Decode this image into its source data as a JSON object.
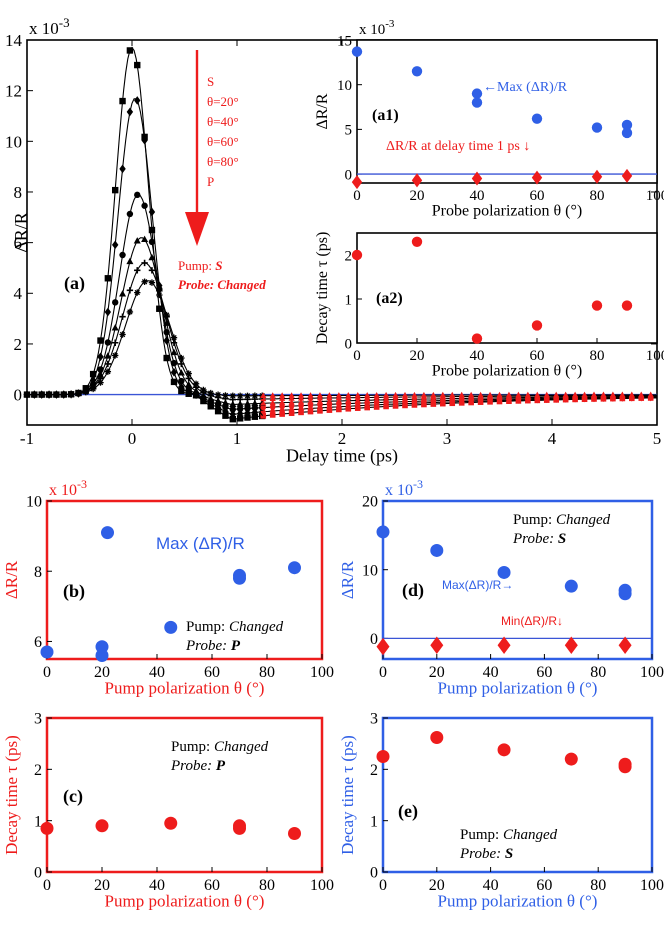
{
  "colors": {
    "red": "#ee1c1c",
    "blue": "#2f5fe6",
    "black": "#000000",
    "hline": "#3a55d6"
  },
  "chart_data": [
    {
      "id": "a",
      "type": "line",
      "panel_label": "(a)",
      "title": "",
      "xlabel": "Delay time (ps)",
      "ylabel": "ΔR/R",
      "exponent_label": "x 10",
      "exponent": "-3",
      "xlim": [
        -1,
        5
      ],
      "ylim": [
        -1.2,
        14
      ],
      "xticks": [
        -1,
        0,
        1,
        2,
        3,
        4,
        5
      ],
      "yticks": [
        0,
        2,
        4,
        6,
        8,
        10,
        12,
        14
      ],
      "axis_color": "#000000",
      "legend_items": [
        "S",
        "θ=20°",
        "θ=40°",
        "θ=60°",
        "θ=80°",
        "P"
      ],
      "arrow_note": "sweep S → P",
      "annotation_pump": "Pump: ",
      "annotation_pump_value": "S",
      "annotation_probe": "Probe: Changed",
      "series": [
        {
          "name": "S",
          "marker": "square",
          "peak": 13.7,
          "center": 0.0,
          "width": 0.22,
          "tail_amp": -1.0,
          "tail_tau": 2.0
        },
        {
          "name": "θ=20°",
          "marker": "diamond",
          "peak": 11.7,
          "center": 0.03,
          "width": 0.23,
          "tail_amp": -0.8,
          "tail_tau": 2.1
        },
        {
          "name": "θ=40°",
          "marker": "circle",
          "peak": 7.9,
          "center": 0.06,
          "width": 0.25,
          "tail_amp": -0.6,
          "tail_tau": 2.2
        },
        {
          "name": "θ=60°",
          "marker": "triangle",
          "peak": 6.2,
          "center": 0.09,
          "width": 0.27,
          "tail_amp": -0.4,
          "tail_tau": 2.3
        },
        {
          "name": "θ=80°",
          "marker": "plus",
          "peak": 5.2,
          "center": 0.12,
          "width": 0.29,
          "tail_amp": -0.2,
          "tail_tau": 2.4
        },
        {
          "name": "P",
          "marker": "star",
          "peak": 4.5,
          "center": 0.15,
          "width": 0.3,
          "tail_amp": -0.05,
          "tail_tau": 2.5
        }
      ]
    },
    {
      "id": "a1",
      "type": "scatter",
      "panel_label": "(a1)",
      "xlabel": "Probe polarization θ (°)",
      "ylabel": "ΔR/R",
      "exponent_label": "x 10",
      "exponent": "-3",
      "xlim": [
        0,
        100
      ],
      "ylim": [
        -1,
        15
      ],
      "xticks": [
        0,
        20,
        40,
        60,
        80,
        100
      ],
      "yticks": [
        0,
        5,
        10,
        15
      ],
      "axis_color": "#000000",
      "zero_line": true,
      "annotation_max": "←Max (ΔR)/R",
      "annotation_min": "ΔR/R at delay time 1 ps ↓",
      "series": [
        {
          "name": "Max (ΔR)/R",
          "marker": "circle",
          "color": "blue",
          "x": [
            0,
            20,
            40,
            40,
            60,
            80,
            90,
            90
          ],
          "y": [
            13.7,
            11.5,
            9.0,
            8.0,
            6.2,
            5.2,
            5.5,
            4.6
          ]
        },
        {
          "name": "ΔR/R at delay time 1 ps",
          "marker": "diamond",
          "color": "red",
          "x": [
            0,
            20,
            40,
            60,
            80,
            90
          ],
          "y": [
            -0.9,
            -0.7,
            -0.5,
            -0.4,
            -0.3,
            -0.2
          ]
        }
      ]
    },
    {
      "id": "a2",
      "type": "scatter",
      "panel_label": "(a2)",
      "xlabel": "Probe polarization θ (°)",
      "ylabel": "Decay time τ (ps)",
      "xlim": [
        0,
        100
      ],
      "ylim": [
        0,
        2.5
      ],
      "xticks": [
        0,
        20,
        40,
        60,
        80,
        100
      ],
      "yticks": [
        0,
        1,
        2
      ],
      "axis_color": "#000000",
      "series": [
        {
          "name": "Decay time",
          "marker": "circle",
          "color": "red",
          "x": [
            0,
            20,
            40,
            60,
            80,
            90
          ],
          "y": [
            2.0,
            2.3,
            0.1,
            0.4,
            0.85,
            0.85
          ]
        }
      ]
    },
    {
      "id": "b",
      "type": "scatter",
      "panel_label": "(b)",
      "xlabel": "Pump polarization θ (°)",
      "ylabel": "ΔR/R",
      "exponent_label": "x 10",
      "exponent": "-3",
      "xlim": [
        0,
        100
      ],
      "ylim": [
        5.5,
        10
      ],
      "xticks": [
        0,
        20,
        40,
        60,
        80,
        100
      ],
      "yticks": [
        6,
        8,
        10
      ],
      "axis_color": "#ee1c1c",
      "annotation_max": "Max (ΔR)/R",
      "annotation_pump": "Pump: ",
      "annotation_pump_value": "Changed",
      "annotation_probe": "Probe: ",
      "annotation_probe_value": "P",
      "series": [
        {
          "name": "Max (ΔR)/R",
          "marker": "circle",
          "color": "blue",
          "x": [
            0,
            20,
            20,
            22,
            45,
            70,
            70,
            90
          ],
          "y": [
            5.7,
            5.6,
            5.85,
            9.1,
            6.4,
            7.8,
            7.88,
            8.1
          ]
        }
      ]
    },
    {
      "id": "c",
      "type": "scatter",
      "panel_label": "(c)",
      "xlabel": "Pump polarization θ (°)",
      "ylabel": "Decay time τ (ps)",
      "xlim": [
        0,
        100
      ],
      "ylim": [
        0,
        3
      ],
      "xticks": [
        0,
        20,
        40,
        60,
        80,
        100
      ],
      "yticks": [
        0,
        1,
        2,
        3
      ],
      "axis_color": "#ee1c1c",
      "annotation_pump": "Pump: ",
      "annotation_pump_value": "Changed",
      "annotation_probe": "Probe: ",
      "annotation_probe_value": "P",
      "series": [
        {
          "name": "Decay time",
          "marker": "circle",
          "color": "red",
          "x": [
            0,
            20,
            45,
            70,
            70,
            90
          ],
          "y": [
            0.85,
            0.9,
            0.95,
            0.85,
            0.9,
            0.75
          ]
        }
      ]
    },
    {
      "id": "d",
      "type": "scatter",
      "panel_label": "(d)",
      "xlabel": "Pump polarization θ (°)",
      "ylabel": "ΔR/R",
      "exponent_label": "x 10",
      "exponent": "-3",
      "xlim": [
        0,
        100
      ],
      "ylim": [
        -3,
        20
      ],
      "xticks": [
        0,
        20,
        40,
        60,
        80,
        100
      ],
      "yticks": [
        0,
        10,
        20
      ],
      "axis_color": "#2f5fe6",
      "zero_line": true,
      "annotation_max": "Max(ΔR)/R→",
      "annotation_min": "Min(ΔR)/R↓",
      "annotation_pump": "Pump: ",
      "annotation_pump_value": "Changed",
      "annotation_probe": "Probe: ",
      "annotation_probe_value": "S",
      "series": [
        {
          "name": "Max(ΔR)/R",
          "marker": "circle",
          "color": "blue",
          "x": [
            0,
            20,
            45,
            70,
            90,
            90
          ],
          "y": [
            15.5,
            12.8,
            9.6,
            7.6,
            6.5,
            7.0
          ]
        },
        {
          "name": "Min(ΔR)/R",
          "marker": "diamond",
          "color": "red",
          "x": [
            0,
            20,
            45,
            70,
            90
          ],
          "y": [
            -1.2,
            -1.0,
            -1.0,
            -1.0,
            -1.0
          ]
        }
      ]
    },
    {
      "id": "e",
      "type": "scatter",
      "panel_label": "(e)",
      "xlabel": "Pump polarization θ (°)",
      "ylabel": "Decay time τ (ps)",
      "xlim": [
        0,
        100
      ],
      "ylim": [
        0,
        3
      ],
      "xticks": [
        0,
        20,
        40,
        60,
        80,
        100
      ],
      "yticks": [
        0,
        1,
        2,
        3
      ],
      "axis_color": "#2f5fe6",
      "annotation_pump": "Pump: ",
      "annotation_pump_value": "Changed",
      "annotation_probe": "Probe: ",
      "annotation_probe_value": "S",
      "series": [
        {
          "name": "Decay time",
          "marker": "circle",
          "color": "red",
          "x": [
            0,
            20,
            45,
            70,
            90,
            90
          ],
          "y": [
            2.25,
            2.62,
            2.38,
            2.2,
            2.05,
            2.1
          ]
        }
      ]
    }
  ]
}
